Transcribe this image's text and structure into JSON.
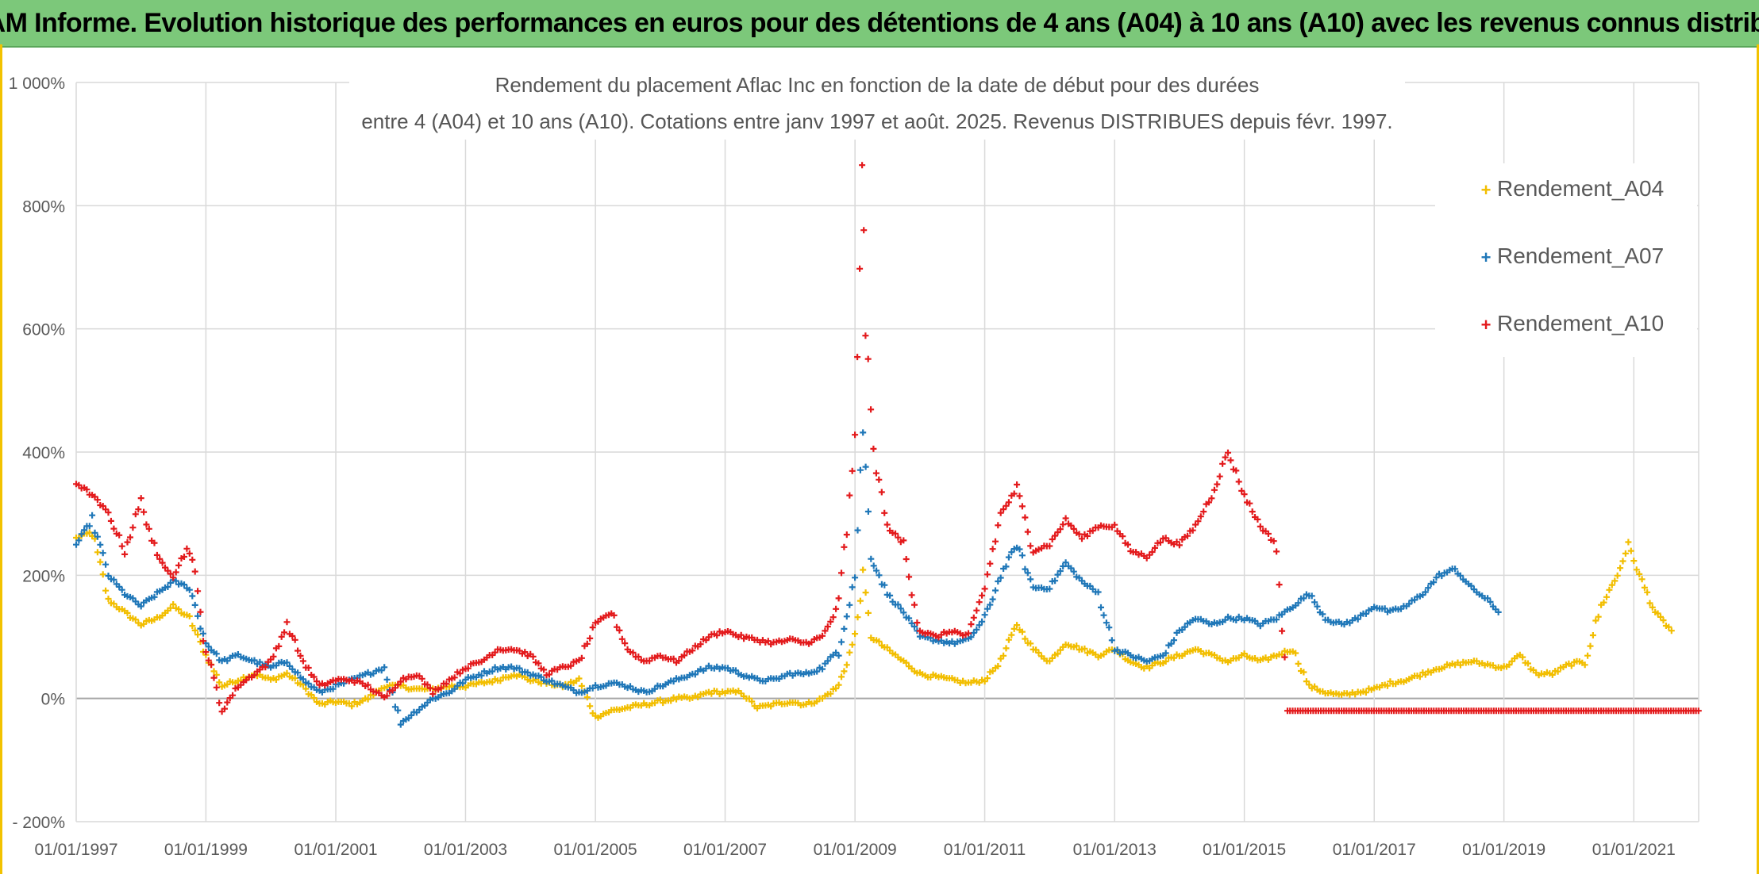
{
  "banner": {
    "title": "ADAM Informe. Evolution historique des performances en euros pour des détentions de 4 ans (A04) à 10 ans (A10) avec les revenus connus distribués"
  },
  "chart_data": {
    "type": "scatter",
    "title_line1": "Rendement du placement Aflac Inc en fonction de la date de début pour des durées",
    "title_line2": "entre 4 (A04) et 10 ans (A10). Cotations entre janv 1997 et août. 2025. Revenus DISTRIBUES depuis févr. 1997.",
    "xlabel": "",
    "ylabel": "",
    "x_tick_labels": [
      "01/01/1997",
      "01/01/1999",
      "01/01/2001",
      "01/01/2003",
      "01/01/2005",
      "01/01/2007",
      "01/01/2009",
      "01/01/2011",
      "01/01/2013",
      "01/01/2015",
      "01/01/2017",
      "01/01/2019",
      "01/01/2021"
    ],
    "x_range": [
      "1997-01-01",
      "2022-01-01"
    ],
    "y_tick_labels": [
      "- 200%",
      "0%",
      "200%",
      "400%",
      "600%",
      "800%",
      "1 000%"
    ],
    "ylim": [
      -200,
      1000
    ],
    "grid": true,
    "legend_position": "top-right",
    "series": [
      {
        "name": "Rendement_A04",
        "color": "#f2be00",
        "points": [
          [
            "1997-01-01",
            260
          ],
          [
            "1997-04-01",
            270
          ],
          [
            "1997-07-01",
            160
          ],
          [
            "1997-10-01",
            140
          ],
          [
            "1998-01-01",
            120
          ],
          [
            "1998-04-01",
            130
          ],
          [
            "1998-07-01",
            150
          ],
          [
            "1998-10-01",
            130
          ],
          [
            "1999-01-01",
            70
          ],
          [
            "1999-04-01",
            20
          ],
          [
            "1999-07-01",
            30
          ],
          [
            "1999-10-01",
            40
          ],
          [
            "2000-01-01",
            30
          ],
          [
            "2000-04-01",
            40
          ],
          [
            "2000-07-01",
            20
          ],
          [
            "2000-10-01",
            -10
          ],
          [
            "2001-01-01",
            -5
          ],
          [
            "2001-04-01",
            -10
          ],
          [
            "2001-07-01",
            0
          ],
          [
            "2001-10-01",
            20
          ],
          [
            "2002-01-01",
            20
          ],
          [
            "2002-04-01",
            15
          ],
          [
            "2002-07-01",
            15
          ],
          [
            "2002-10-01",
            20
          ],
          [
            "2003-01-01",
            20
          ],
          [
            "2003-04-01",
            25
          ],
          [
            "2003-07-01",
            30
          ],
          [
            "2003-10-01",
            40
          ],
          [
            "2004-01-01",
            30
          ],
          [
            "2004-04-01",
            25
          ],
          [
            "2004-07-01",
            20
          ],
          [
            "2004-10-01",
            30
          ],
          [
            "2005-01-01",
            -30
          ],
          [
            "2005-04-01",
            -20
          ],
          [
            "2005-07-01",
            -15
          ],
          [
            "2005-10-01",
            -10
          ],
          [
            "2006-01-01",
            -5
          ],
          [
            "2006-04-01",
            0
          ],
          [
            "2006-07-01",
            0
          ],
          [
            "2006-10-01",
            10
          ],
          [
            "2007-01-01",
            10
          ],
          [
            "2007-04-01",
            10
          ],
          [
            "2007-07-01",
            -15
          ],
          [
            "2007-10-01",
            -10
          ],
          [
            "2008-01-01",
            -5
          ],
          [
            "2008-04-01",
            -10
          ],
          [
            "2008-07-01",
            0
          ],
          [
            "2008-10-01",
            20
          ],
          [
            "2009-01-01",
            100
          ],
          [
            "2009-02-15",
            200
          ],
          [
            "2009-04-01",
            100
          ],
          [
            "2009-07-01",
            80
          ],
          [
            "2009-10-01",
            60
          ],
          [
            "2010-01-01",
            40
          ],
          [
            "2010-04-01",
            35
          ],
          [
            "2010-07-01",
            30
          ],
          [
            "2010-10-01",
            25
          ],
          [
            "2011-01-01",
            30
          ],
          [
            "2011-04-01",
            60
          ],
          [
            "2011-07-01",
            120
          ],
          [
            "2011-10-01",
            80
          ],
          [
            "2012-01-01",
            60
          ],
          [
            "2012-04-01",
            90
          ],
          [
            "2012-07-01",
            80
          ],
          [
            "2012-10-01",
            70
          ],
          [
            "2013-01-01",
            80
          ],
          [
            "2013-04-01",
            60
          ],
          [
            "2013-07-01",
            50
          ],
          [
            "2013-10-01",
            60
          ],
          [
            "2014-01-01",
            70
          ],
          [
            "2014-04-01",
            80
          ],
          [
            "2014-07-01",
            70
          ],
          [
            "2014-10-01",
            60
          ],
          [
            "2015-01-01",
            70
          ],
          [
            "2015-04-01",
            60
          ],
          [
            "2015-07-01",
            70
          ],
          [
            "2015-10-01",
            80
          ],
          [
            "2016-01-01",
            20
          ],
          [
            "2016-04-01",
            10
          ],
          [
            "2016-07-01",
            5
          ],
          [
            "2016-10-01",
            10
          ],
          [
            "2017-01-01",
            15
          ],
          [
            "2017-04-01",
            25
          ],
          [
            "2017-07-01",
            30
          ],
          [
            "2017-10-01",
            40
          ],
          [
            "2018-01-01",
            50
          ],
          [
            "2018-04-01",
            55
          ],
          [
            "2018-07-01",
            60
          ],
          [
            "2018-10-01",
            55
          ],
          [
            "2019-01-01",
            50
          ],
          [
            "2019-04-01",
            70
          ],
          [
            "2019-07-01",
            40
          ],
          [
            "2019-10-01",
            40
          ],
          [
            "2020-01-01",
            55
          ],
          [
            "2020-04-01",
            60
          ],
          [
            "2020-07-01",
            150
          ],
          [
            "2020-10-01",
            200
          ],
          [
            "2020-12-01",
            250
          ],
          [
            "2021-02-01",
            200
          ],
          [
            "2021-05-01",
            140
          ],
          [
            "2021-08-01",
            110
          ]
        ]
      },
      {
        "name": "Rendement_A07",
        "color": "#1f77b8",
        "points": [
          [
            "1997-01-01",
            250
          ],
          [
            "1997-04-01",
            290
          ],
          [
            "1997-07-01",
            200
          ],
          [
            "1997-10-01",
            170
          ],
          [
            "1998-01-01",
            150
          ],
          [
            "1998-04-01",
            170
          ],
          [
            "1998-07-01",
            190
          ],
          [
            "1998-10-01",
            180
          ],
          [
            "1999-01-01",
            90
          ],
          [
            "1999-04-01",
            60
          ],
          [
            "1999-07-01",
            70
          ],
          [
            "1999-10-01",
            60
          ],
          [
            "2000-01-01",
            50
          ],
          [
            "2000-04-01",
            60
          ],
          [
            "2000-07-01",
            30
          ],
          [
            "2000-10-01",
            10
          ],
          [
            "2001-01-01",
            20
          ],
          [
            "2001-04-01",
            30
          ],
          [
            "2001-07-01",
            40
          ],
          [
            "2001-10-01",
            50
          ],
          [
            "2002-01-01",
            -40
          ],
          [
            "2002-04-01",
            -20
          ],
          [
            "2002-07-01",
            0
          ],
          [
            "2002-10-01",
            10
          ],
          [
            "2003-01-01",
            30
          ],
          [
            "2003-04-01",
            40
          ],
          [
            "2003-07-01",
            50
          ],
          [
            "2003-10-01",
            50
          ],
          [
            "2004-01-01",
            40
          ],
          [
            "2004-04-01",
            30
          ],
          [
            "2004-07-01",
            20
          ],
          [
            "2004-10-01",
            10
          ],
          [
            "2005-01-01",
            20
          ],
          [
            "2005-04-01",
            25
          ],
          [
            "2005-07-01",
            20
          ],
          [
            "2005-10-01",
            10
          ],
          [
            "2006-01-01",
            20
          ],
          [
            "2006-04-01",
            30
          ],
          [
            "2006-07-01",
            40
          ],
          [
            "2006-10-01",
            50
          ],
          [
            "2007-01-01",
            50
          ],
          [
            "2007-04-01",
            40
          ],
          [
            "2007-07-01",
            30
          ],
          [
            "2007-10-01",
            30
          ],
          [
            "2008-01-01",
            40
          ],
          [
            "2008-04-01",
            40
          ],
          [
            "2008-07-01",
            50
          ],
          [
            "2008-10-01",
            80
          ],
          [
            "2009-01-01",
            200
          ],
          [
            "2009-02-15",
            440
          ],
          [
            "2009-04-01",
            230
          ],
          [
            "2009-07-01",
            170
          ],
          [
            "2009-10-01",
            140
          ],
          [
            "2010-01-01",
            100
          ],
          [
            "2010-04-01",
            95
          ],
          [
            "2010-07-01",
            90
          ],
          [
            "2010-10-01",
            95
          ],
          [
            "2011-01-01",
            130
          ],
          [
            "2011-04-01",
            200
          ],
          [
            "2011-07-01",
            250
          ],
          [
            "2011-10-01",
            180
          ],
          [
            "2012-01-01",
            180
          ],
          [
            "2012-04-01",
            220
          ],
          [
            "2012-07-01",
            190
          ],
          [
            "2012-10-01",
            170
          ],
          [
            "2013-01-01",
            80
          ],
          [
            "2013-04-01",
            70
          ],
          [
            "2013-07-01",
            60
          ],
          [
            "2013-10-01",
            70
          ],
          [
            "2014-01-01",
            110
          ],
          [
            "2014-04-01",
            130
          ],
          [
            "2014-07-01",
            120
          ],
          [
            "2014-10-01",
            130
          ],
          [
            "2015-01-01",
            130
          ],
          [
            "2015-04-01",
            120
          ],
          [
            "2015-07-01",
            130
          ],
          [
            "2015-10-01",
            150
          ],
          [
            "2016-01-01",
            170
          ],
          [
            "2016-04-01",
            130
          ],
          [
            "2016-07-01",
            120
          ],
          [
            "2016-10-01",
            130
          ],
          [
            "2017-01-01",
            150
          ],
          [
            "2017-04-01",
            140
          ],
          [
            "2017-07-01",
            150
          ],
          [
            "2017-10-01",
            170
          ],
          [
            "2018-01-01",
            200
          ],
          [
            "2018-04-01",
            210
          ],
          [
            "2018-07-01",
            180
          ],
          [
            "2018-10-01",
            160
          ],
          [
            "2018-12-01",
            140
          ]
        ]
      },
      {
        "name": "Rendement_A10",
        "color": "#e31a1c",
        "points": [
          [
            "1997-01-01",
            350
          ],
          [
            "1997-04-01",
            330
          ],
          [
            "1997-07-01",
            300
          ],
          [
            "1997-10-01",
            240
          ],
          [
            "1998-01-01",
            320
          ],
          [
            "1998-04-01",
            230
          ],
          [
            "1998-07-01",
            200
          ],
          [
            "1998-10-01",
            250
          ],
          [
            "1999-01-01",
            80
          ],
          [
            "1999-04-01",
            -20
          ],
          [
            "1999-07-01",
            20
          ],
          [
            "1999-10-01",
            40
          ],
          [
            "2000-01-01",
            60
          ],
          [
            "2000-04-01",
            120
          ],
          [
            "2000-07-01",
            60
          ],
          [
            "2000-10-01",
            20
          ],
          [
            "2001-01-01",
            30
          ],
          [
            "2001-04-01",
            30
          ],
          [
            "2001-07-01",
            20
          ],
          [
            "2001-10-01",
            0
          ],
          [
            "2002-01-01",
            30
          ],
          [
            "2002-04-01",
            40
          ],
          [
            "2002-07-01",
            10
          ],
          [
            "2002-10-01",
            30
          ],
          [
            "2003-01-01",
            50
          ],
          [
            "2003-04-01",
            60
          ],
          [
            "2003-07-01",
            80
          ],
          [
            "2003-10-01",
            80
          ],
          [
            "2004-01-01",
            70
          ],
          [
            "2004-04-01",
            40
          ],
          [
            "2004-07-01",
            50
          ],
          [
            "2004-10-01",
            60
          ],
          [
            "2005-01-01",
            120
          ],
          [
            "2005-04-01",
            140
          ],
          [
            "2005-07-01",
            80
          ],
          [
            "2005-10-01",
            60
          ],
          [
            "2006-01-01",
            70
          ],
          [
            "2006-04-01",
            60
          ],
          [
            "2006-07-01",
            80
          ],
          [
            "2006-10-01",
            100
          ],
          [
            "2007-01-01",
            110
          ],
          [
            "2007-04-01",
            100
          ],
          [
            "2007-07-01",
            95
          ],
          [
            "2007-10-01",
            90
          ],
          [
            "2008-01-01",
            95
          ],
          [
            "2008-04-01",
            90
          ],
          [
            "2008-07-01",
            100
          ],
          [
            "2008-10-01",
            150
          ],
          [
            "2009-01-01",
            400
          ],
          [
            "2009-02-10",
            880
          ],
          [
            "2009-03-01",
            600
          ],
          [
            "2009-04-15",
            400
          ],
          [
            "2009-07-01",
            280
          ],
          [
            "2009-10-01",
            250
          ],
          [
            "2010-01-01",
            110
          ],
          [
            "2010-04-01",
            100
          ],
          [
            "2010-07-01",
            110
          ],
          [
            "2010-10-01",
            100
          ],
          [
            "2011-01-01",
            180
          ],
          [
            "2011-04-01",
            300
          ],
          [
            "2011-07-01",
            340
          ],
          [
            "2011-10-01",
            240
          ],
          [
            "2012-01-01",
            250
          ],
          [
            "2012-04-01",
            290
          ],
          [
            "2012-07-01",
            260
          ],
          [
            "2012-10-01",
            280
          ],
          [
            "2013-01-01",
            280
          ],
          [
            "2013-04-01",
            240
          ],
          [
            "2013-07-01",
            230
          ],
          [
            "2013-10-01",
            260
          ],
          [
            "2014-01-01",
            250
          ],
          [
            "2014-04-01",
            280
          ],
          [
            "2014-07-01",
            330
          ],
          [
            "2014-10-01",
            400
          ],
          [
            "2015-01-01",
            330
          ],
          [
            "2015-04-01",
            280
          ],
          [
            "2015-07-01",
            250
          ],
          [
            "2015-09-01",
            -20
          ],
          [
            "2016-07-01",
            -20
          ],
          [
            "2017-07-01",
            -20
          ],
          [
            "2018-07-01",
            -20
          ],
          [
            "2019-07-01",
            -20
          ],
          [
            "2020-07-01",
            -20
          ],
          [
            "2021-07-01",
            -20
          ],
          [
            "2021-12-31",
            -20
          ]
        ]
      }
    ]
  }
}
